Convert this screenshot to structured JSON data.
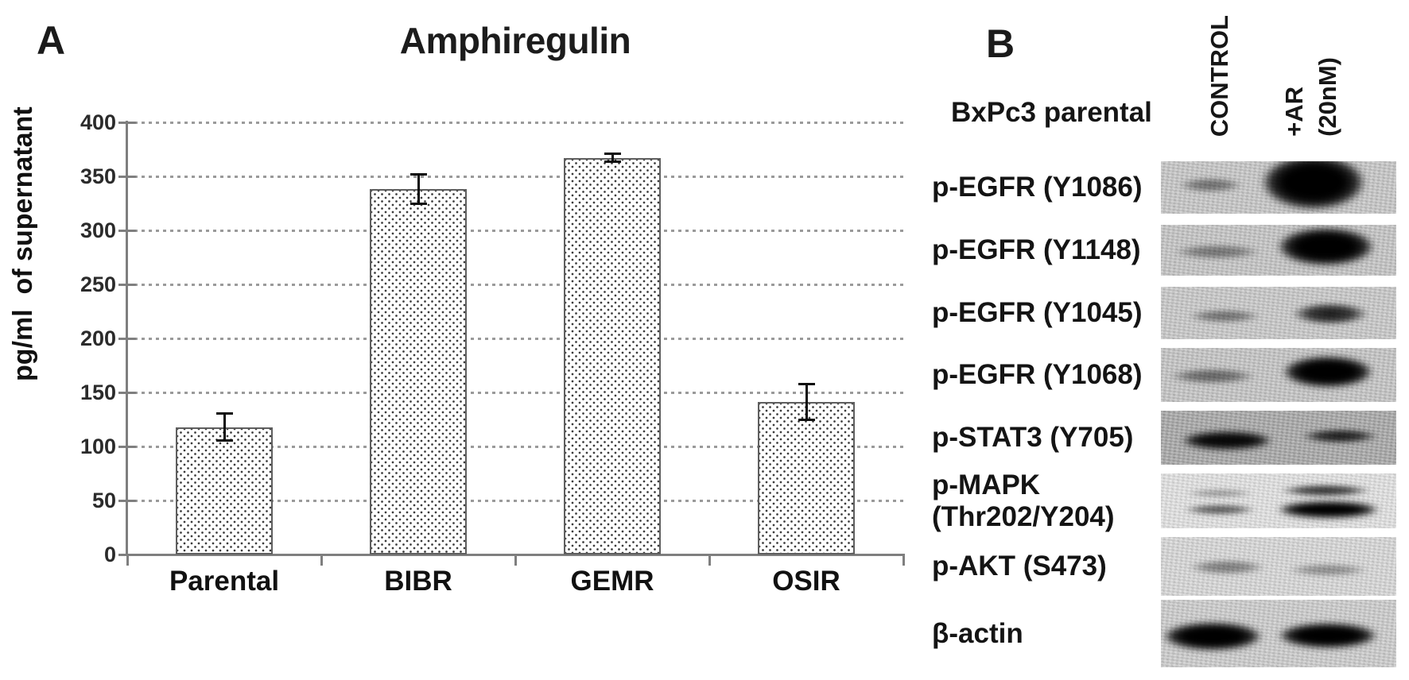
{
  "panel_a": {
    "label": "A"
  },
  "chart_data": {
    "type": "bar",
    "title": "Amphiregulin",
    "ylabel": "pg/ml  of supernatant",
    "categories": [
      "Parental",
      "BIBR",
      "GEMR",
      "OSIR"
    ],
    "values": [
      118,
      338,
      367,
      141
    ],
    "error_bars": [
      13,
      14,
      4,
      17
    ],
    "ylim": [
      0,
      400
    ],
    "yticks": [
      400,
      350,
      300,
      250,
      200,
      150,
      100,
      50,
      0
    ],
    "grid": "horizontal-dashed",
    "legend": "none",
    "bar_style": "white fill with stippled dot pattern and gray border"
  },
  "panel_b": {
    "label": "B",
    "cell_line": "BxPc3 parental",
    "lanes": [
      {
        "name": "CONTROL",
        "header_lines": [
          "CONTROL"
        ]
      },
      {
        "name": "+AR (20nM)",
        "header_lines": [
          "+AR",
          "(20nM)"
        ]
      }
    ],
    "bands_format": "[x_center_frac, y_center_frac, width_frac, height_frac, darkness_0_to_1]",
    "rows": [
      {
        "label": "p-EGFR (Y1086)",
        "label_lines": [
          "p-EGFR (Y1086)"
        ],
        "control_signal": "weak",
        "ar_signal": "very strong",
        "bg": "#c8c8c8",
        "bands": [
          [
            0.21,
            0.46,
            0.28,
            0.3,
            0.45
          ],
          [
            0.65,
            0.4,
            0.46,
            1.1,
            1
          ]
        ]
      },
      {
        "label": "p-EGFR (Y1148)",
        "label_lines": [
          "p-EGFR (Y1148)"
        ],
        "control_signal": "weak",
        "ar_signal": "very strong",
        "bg": "#c6c6c6",
        "bands": [
          [
            0.24,
            0.53,
            0.38,
            0.3,
            0.42
          ],
          [
            0.7,
            0.43,
            0.43,
            0.8,
            1
          ]
        ]
      },
      {
        "label": "p-EGFR (Y1045)",
        "label_lines": [
          "p-EGFR (Y1045)"
        ],
        "control_signal": "weak",
        "ar_signal": "strong",
        "bg": "#cacaca",
        "bands": [
          [
            0.27,
            0.56,
            0.32,
            0.28,
            0.45
          ],
          [
            0.72,
            0.52,
            0.34,
            0.45,
            0.88
          ]
        ]
      },
      {
        "label": "p-EGFR (Y1068)",
        "label_lines": [
          "p-EGFR (Y1068)"
        ],
        "control_signal": "moderate",
        "ar_signal": "very strong",
        "bg": "#c6c6c6",
        "bands": [
          [
            0.22,
            0.52,
            0.38,
            0.3,
            0.5
          ],
          [
            0.71,
            0.44,
            0.4,
            0.62,
            1
          ]
        ]
      },
      {
        "label": "p-STAT3 (Y705)",
        "label_lines": [
          "p-STAT3 (Y705)"
        ],
        "control_signal": "strong",
        "ar_signal": "strong",
        "bg": "#a9a9a9",
        "bands": [
          [
            0.28,
            0.55,
            0.4,
            0.36,
            0.95
          ],
          [
            0.76,
            0.47,
            0.34,
            0.3,
            0.85
          ]
        ]
      },
      {
        "label": "p-MAPK (Thr202/Y204)",
        "label_lines": [
          "p-MAPK",
          "(Thr202/Y204)"
        ],
        "control_signal": "weak doublet",
        "ar_signal": "very strong doublet",
        "bg": "#e4e4e4",
        "bands": [
          [
            0.25,
            0.36,
            0.3,
            0.18,
            0.3
          ],
          [
            0.25,
            0.66,
            0.32,
            0.22,
            0.6
          ],
          [
            0.7,
            0.31,
            0.4,
            0.24,
            0.78
          ],
          [
            0.71,
            0.66,
            0.45,
            0.34,
            1
          ]
        ]
      },
      {
        "label": "p-AKT (S473)",
        "label_lines": [
          "p-AKT (S473)"
        ],
        "control_signal": "moderate",
        "ar_signal": "weak",
        "bg": "#d9d9d9",
        "bands": [
          [
            0.28,
            0.52,
            0.34,
            0.27,
            0.42
          ],
          [
            0.71,
            0.56,
            0.35,
            0.24,
            0.35
          ]
        ]
      },
      {
        "label": "β-actin",
        "label_lines": [
          "β-actin"
        ],
        "control_signal": "very strong",
        "ar_signal": "very strong",
        "bg": "#cecece",
        "bands": [
          [
            0.22,
            0.54,
            0.44,
            0.44,
            1
          ],
          [
            0.71,
            0.53,
            0.44,
            0.4,
            1
          ]
        ]
      }
    ]
  }
}
